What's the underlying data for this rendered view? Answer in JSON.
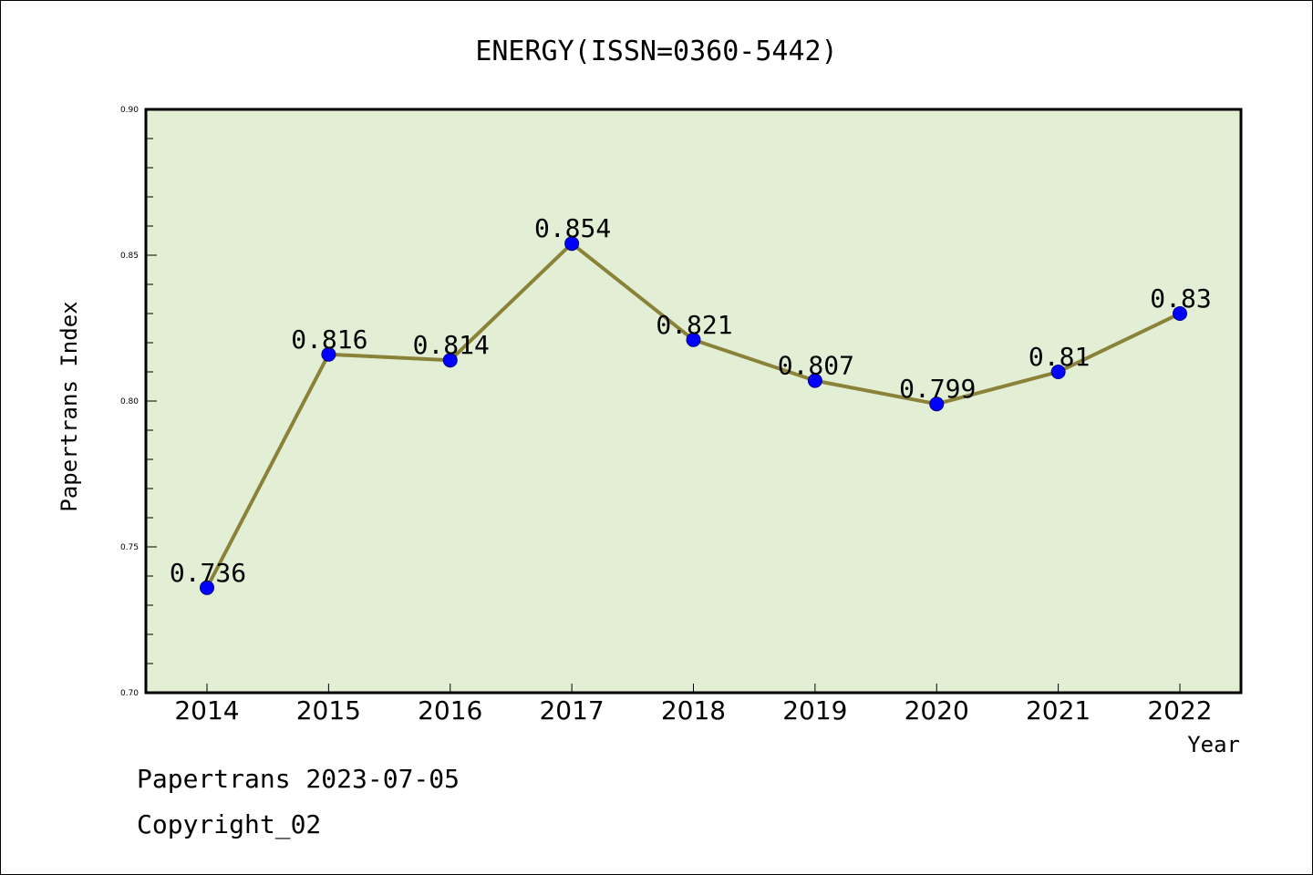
{
  "chart_data": {
    "type": "line",
    "title": "ENERGY(ISSN=0360-5442)",
    "xlabel": "Year",
    "ylabel": "Papertrans Index",
    "categories": [
      "2014",
      "2015",
      "2016",
      "2017",
      "2018",
      "2019",
      "2020",
      "2021",
      "2022"
    ],
    "series": [
      {
        "values": [
          0.736,
          0.816,
          0.814,
          0.854,
          0.821,
          0.807,
          0.799,
          0.81,
          0.83
        ],
        "labels": [
          "0.736",
          "0.816",
          "0.814",
          "0.854",
          "0.821",
          "0.807",
          "0.799",
          "0.81",
          "0.83"
        ]
      }
    ],
    "ylim": [
      0.7,
      0.9
    ],
    "yticks": [
      "0.70",
      "0.75",
      "0.80",
      "0.85",
      "0.90"
    ],
    "grid": false,
    "plot_background": "#e2efd4",
    "line_color": "#8b8239",
    "marker_color": "#0000ff"
  },
  "footer": {
    "line1": "Papertrans 2023-07-05",
    "line2": "Copyright_02"
  }
}
